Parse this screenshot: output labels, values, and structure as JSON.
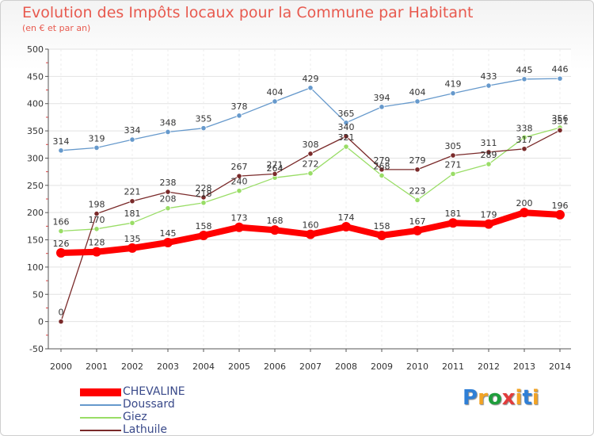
{
  "chart_data": {
    "type": "line",
    "title": "Evolution des Impôts locaux pour la Commune par Habitant",
    "subtitle": "(en € et par an)",
    "xlabel": "",
    "ylabel": "",
    "x": [
      "2000",
      "2001",
      "2002",
      "2003",
      "2004",
      "2005",
      "2006",
      "2007",
      "2008",
      "2009",
      "2010",
      "2011",
      "2012",
      "2013",
      "2014"
    ],
    "ylim": [
      -50,
      500
    ],
    "yticks": [
      "-50",
      "0",
      "50",
      "100",
      "150",
      "200",
      "250",
      "300",
      "350",
      "400",
      "450",
      "500"
    ],
    "grid": true,
    "legend_position": "bottom-left",
    "series": [
      {
        "name": "CHEVALINE",
        "color": "#ff0000",
        "values": [
          126,
          128,
          135,
          145,
          158,
          173,
          168,
          160,
          174,
          158,
          167,
          181,
          179,
          200,
          196
        ]
      },
      {
        "name": "Doussard",
        "color": "#6699cc",
        "values": [
          314,
          319,
          334,
          348,
          355,
          378,
          404,
          429,
          365,
          394,
          404,
          419,
          433,
          445,
          446
        ]
      },
      {
        "name": "Giez",
        "color": "#99dd66",
        "values": [
          166,
          170,
          181,
          208,
          218,
          240,
          264,
          272,
          321,
          268,
          223,
          271,
          289,
          338,
          356
        ]
      },
      {
        "name": "Lathuile",
        "color": "#7a2a2a",
        "values": [
          0,
          198,
          221,
          238,
          228,
          267,
          271,
          308,
          340,
          279,
          279,
          305,
          311,
          317,
          351
        ]
      }
    ]
  },
  "logo": {
    "letters": [
      "P",
      "r",
      "o",
      "x",
      "i",
      "t",
      "i"
    ],
    "colors": [
      "#2f7fd6",
      "#f2a324",
      "#1f9e3c",
      "#e23c3c",
      "#f2a324",
      "#2f7fd6",
      "#f2a324"
    ]
  }
}
